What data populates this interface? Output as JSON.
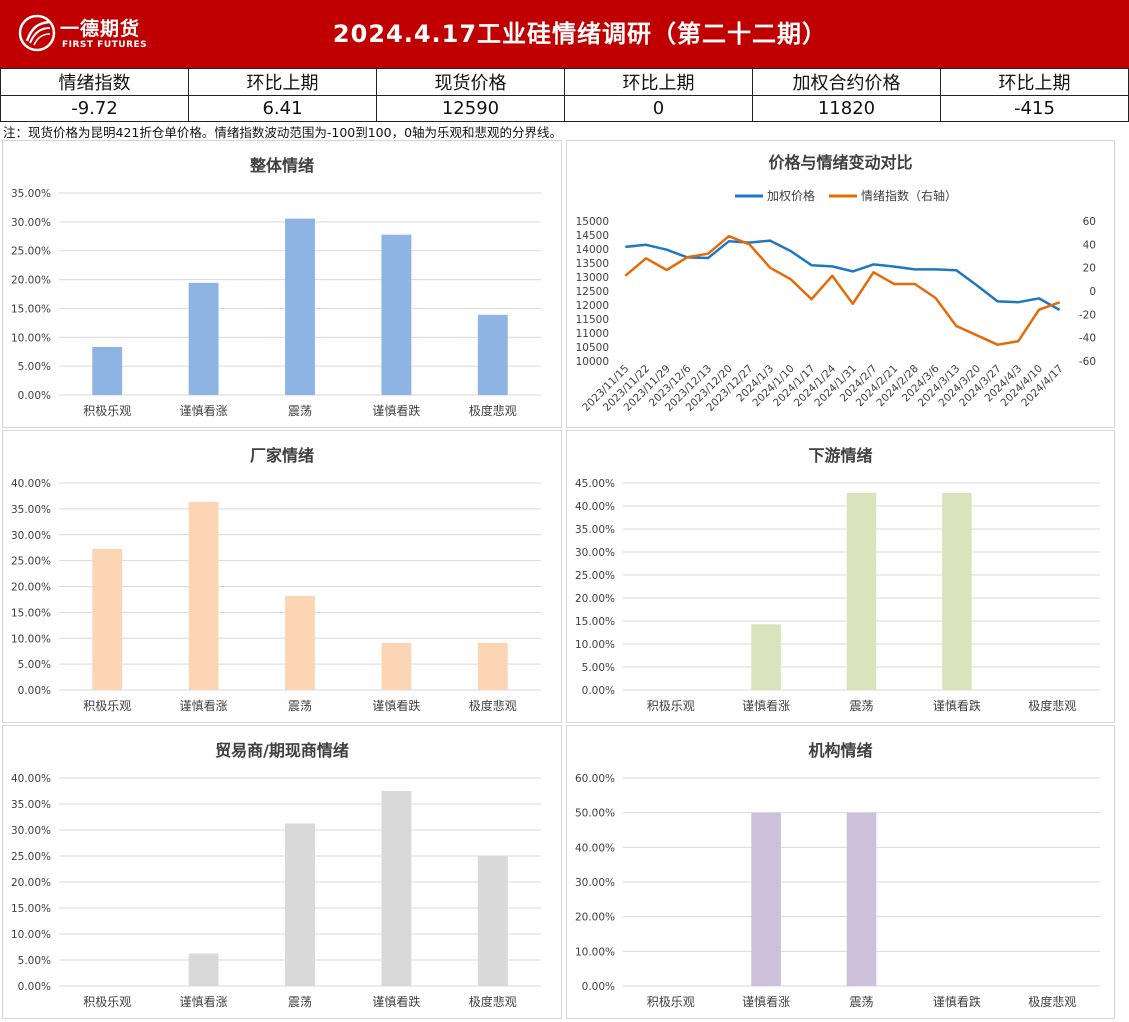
{
  "header": {
    "logo_cn": "一德期货",
    "logo_en": "FIRST FUTURES",
    "title": "2024.4.17工业硅情绪调研（第二十二期）"
  },
  "summary": {
    "labels": [
      "情绪指数",
      "环比上期",
      "现货价格",
      "环比上期",
      "加权合约价格",
      "环比上期"
    ],
    "values": [
      "-9.72",
      "6.41",
      "12590",
      "0",
      "11820",
      "-415"
    ]
  },
  "note": "注：现货价格为昆明421折仓单价格。情绪指数波动范围为-100到100，0轴为乐观和悲观的分界线。",
  "colors": {
    "header_bg": "#c00000",
    "overall": "#8eb4e3",
    "producer": "#fcd5b4",
    "downstream": "#d8e4bc",
    "trader": "#d9d9d9",
    "institution": "#ccc0da",
    "price_line": "#1f77c4",
    "sentiment_line": "#e36c09"
  },
  "chart_data": [
    {
      "id": "overall",
      "type": "bar",
      "title": "整体情绪",
      "categories": [
        "积极乐观",
        "谨慎看涨",
        "震荡",
        "谨慎看跌",
        "极度悲观"
      ],
      "values": [
        8.33,
        19.44,
        30.56,
        27.78,
        13.89
      ],
      "yticks": [
        "0.00%",
        "5.00%",
        "10.00%",
        "15.00%",
        "20.00%",
        "25.00%",
        "30.00%",
        "35.00%"
      ],
      "ylim": [
        0,
        35
      ]
    },
    {
      "id": "combo",
      "type": "line",
      "title": "价格与情绪变动对比",
      "x": [
        "2023/11/15",
        "2023/11/22",
        "2023/11/29",
        "2023/12/6",
        "2023/12/13",
        "2023/12/20",
        "2023/12/27",
        "2024/1/3",
        "2024/1/10",
        "2024/1/17",
        "2024/1/24",
        "2024/1/31",
        "2024/2/7",
        "2024/2/21",
        "2024/2/28",
        "2024/3/6",
        "2024/3/13",
        "2024/3/20",
        "2024/3/27",
        "2024/4/3",
        "2024/4/10",
        "2024/4/17"
      ],
      "series": [
        {
          "name": "加权价格",
          "axis": "left",
          "values": [
            14075,
            14150,
            13975,
            13700,
            13680,
            14275,
            14230,
            14300,
            13925,
            13420,
            13380,
            13200,
            13450,
            13370,
            13270,
            13270,
            13240,
            12700,
            12130,
            12100,
            12235,
            11820
          ]
        },
        {
          "name": "情绪指数（右轴）",
          "axis": "right",
          "values": [
            13,
            28,
            18,
            29,
            32,
            47,
            40,
            20,
            10,
            -7,
            13,
            -11,
            16,
            6,
            6,
            -6,
            -30,
            -38,
            -46,
            -43,
            -16,
            -9.72
          ]
        }
      ],
      "yticks_left": [
        "10000",
        "10500",
        "11000",
        "11500",
        "12000",
        "12500",
        "13000",
        "13500",
        "14000",
        "14500",
        "15000"
      ],
      "ylim_left": [
        10000,
        15000
      ],
      "yticks_right": [
        "-60",
        "-40",
        "-20",
        "0",
        "20",
        "40",
        "60"
      ],
      "ylim_right": [
        -60,
        60
      ],
      "legend": "top"
    },
    {
      "id": "producer",
      "type": "bar",
      "title": "厂家情绪",
      "categories": [
        "积极乐观",
        "谨慎看涨",
        "震荡",
        "谨慎看跌",
        "极度悲观"
      ],
      "values": [
        27.27,
        36.36,
        18.18,
        9.09,
        9.09
      ],
      "yticks": [
        "0.00%",
        "5.00%",
        "10.00%",
        "15.00%",
        "20.00%",
        "25.00%",
        "30.00%",
        "35.00%",
        "40.00%"
      ],
      "ylim": [
        0,
        40
      ]
    },
    {
      "id": "downstream",
      "type": "bar",
      "title": "下游情绪",
      "categories": [
        "积极乐观",
        "谨慎看涨",
        "震荡",
        "谨慎看跌",
        "极度悲观"
      ],
      "values": [
        0,
        14.29,
        42.86,
        42.86,
        0
      ],
      "yticks": [
        "0.00%",
        "5.00%",
        "10.00%",
        "15.00%",
        "20.00%",
        "25.00%",
        "30.00%",
        "35.00%",
        "40.00%",
        "45.00%"
      ],
      "ylim": [
        0,
        45
      ]
    },
    {
      "id": "trader",
      "type": "bar",
      "title": "贸易商/期现商情绪",
      "categories": [
        "积极乐观",
        "谨慎看涨",
        "震荡",
        "谨慎看跌",
        "极度悲观"
      ],
      "values": [
        0,
        6.25,
        31.25,
        37.5,
        25.0
      ],
      "yticks": [
        "0.00%",
        "5.00%",
        "10.00%",
        "15.00%",
        "20.00%",
        "25.00%",
        "30.00%",
        "35.00%",
        "40.00%"
      ],
      "ylim": [
        0,
        40
      ]
    },
    {
      "id": "institution",
      "type": "bar",
      "title": "机构情绪",
      "categories": [
        "积极乐观",
        "谨慎看涨",
        "震荡",
        "谨慎看跌",
        "极度悲观"
      ],
      "values": [
        0,
        50.0,
        50.0,
        0,
        0
      ],
      "yticks": [
        "0.00%",
        "10.00%",
        "20.00%",
        "30.00%",
        "40.00%",
        "50.00%",
        "60.00%"
      ],
      "ylim": [
        0,
        60
      ]
    }
  ]
}
